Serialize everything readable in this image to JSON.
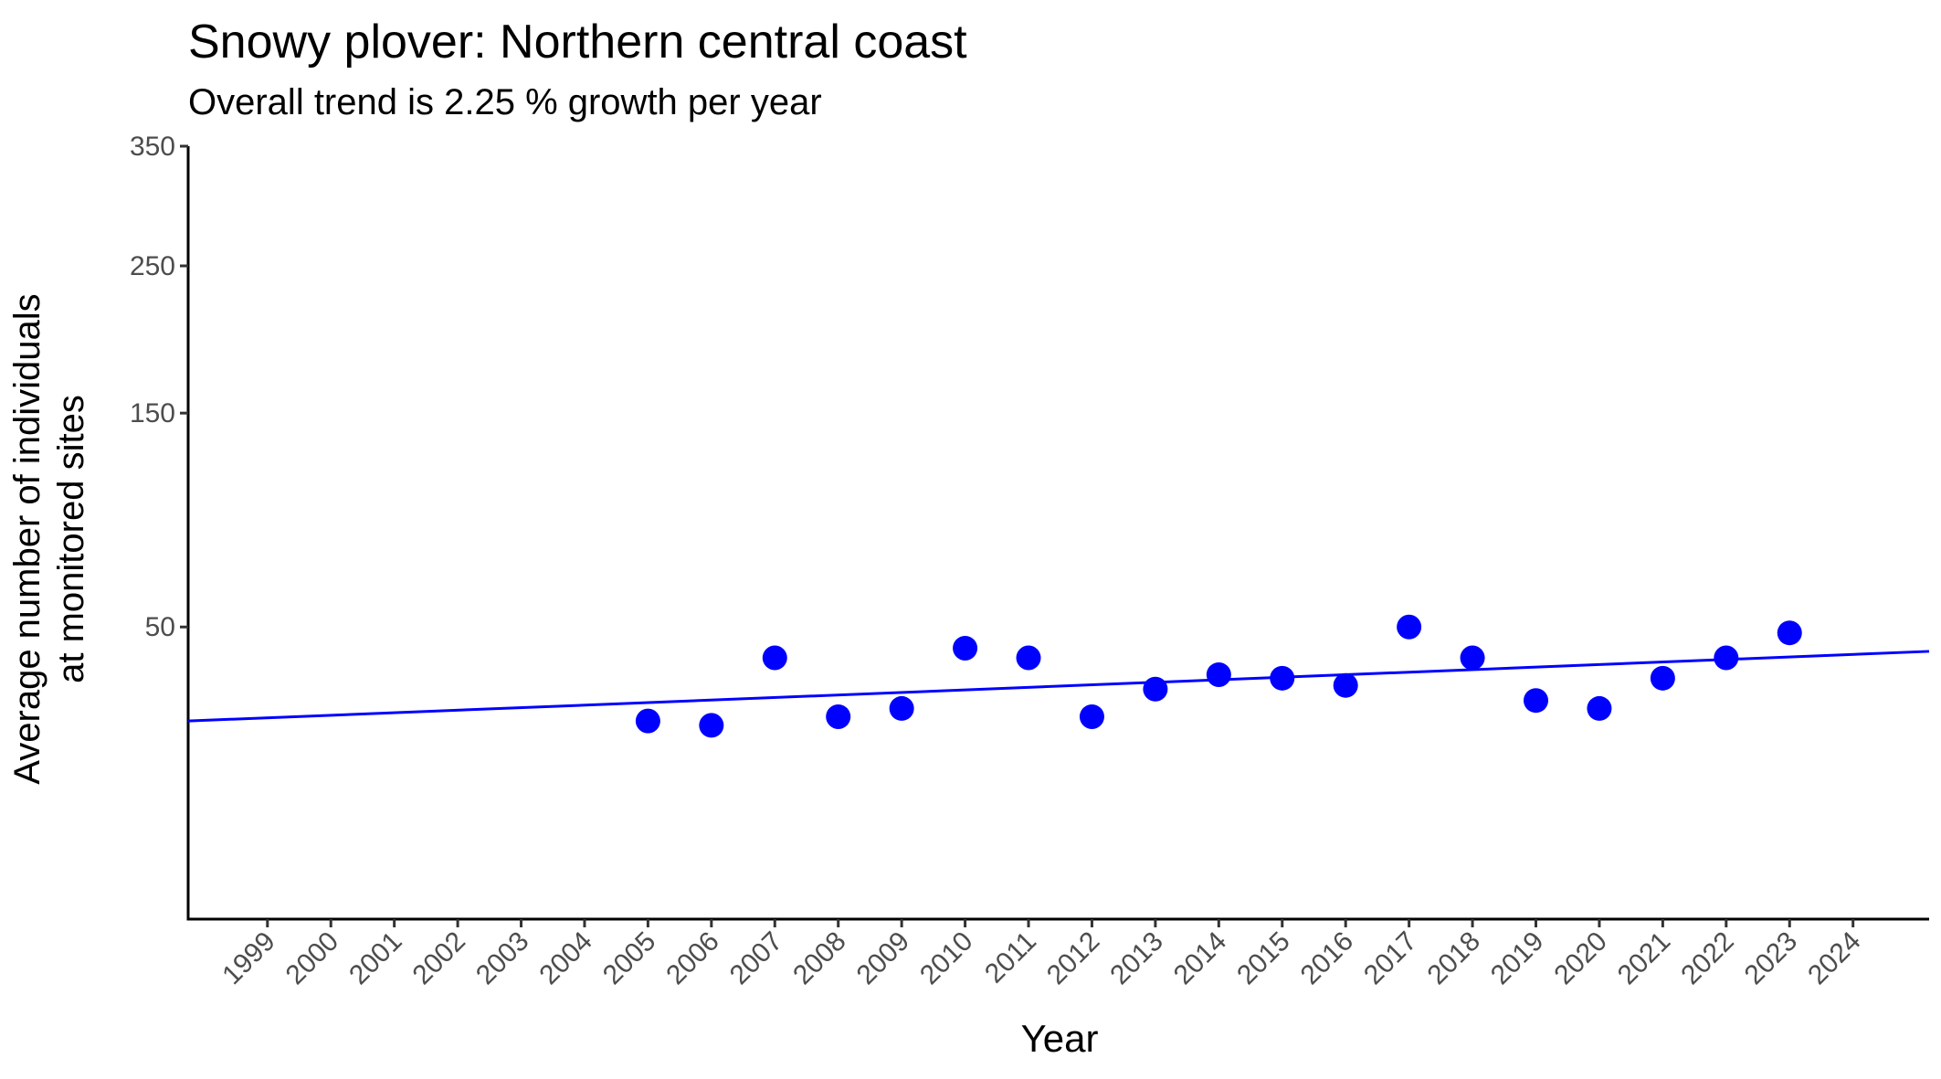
{
  "chart_data": {
    "type": "scatter",
    "title": "Snowy plover: Northern central coast",
    "subtitle": "Overall trend is 2.25 % growth per year",
    "xlabel": "Year",
    "ylabel_line1": "Average number of individuals",
    "ylabel_line2": "at monitored sites",
    "y_scale": "sqrt",
    "ylim": [
      0,
      350
    ],
    "xlim": [
      1997.75,
      2025.2
    ],
    "y_ticks": [
      50,
      150,
      250,
      350
    ],
    "x_ticks": [
      1999,
      2000,
      2001,
      2002,
      2003,
      2004,
      2005,
      2006,
      2007,
      2008,
      2009,
      2010,
      2011,
      2012,
      2013,
      2014,
      2015,
      2016,
      2017,
      2018,
      2019,
      2020,
      2021,
      2022,
      2023,
      2024
    ],
    "grid": false,
    "legend": "none",
    "point_color": "#0000ff",
    "line_color": "#0000ff",
    "series": [
      {
        "type": "scatter",
        "x": [
          2005,
          2006,
          2007,
          2008,
          2009,
          2010,
          2011,
          2012,
          2013,
          2014,
          2015,
          2016,
          2017,
          2018,
          2019,
          2020,
          2021,
          2022,
          2023
        ],
        "y": [
          23,
          22,
          40,
          24,
          26,
          43,
          40,
          24,
          31,
          35,
          34,
          32,
          50,
          40,
          28,
          26,
          34,
          40,
          48
        ]
      },
      {
        "type": "trend-line",
        "x": [
          1997.75,
          2025.2
        ],
        "y": [
          23,
          42
        ]
      }
    ]
  }
}
